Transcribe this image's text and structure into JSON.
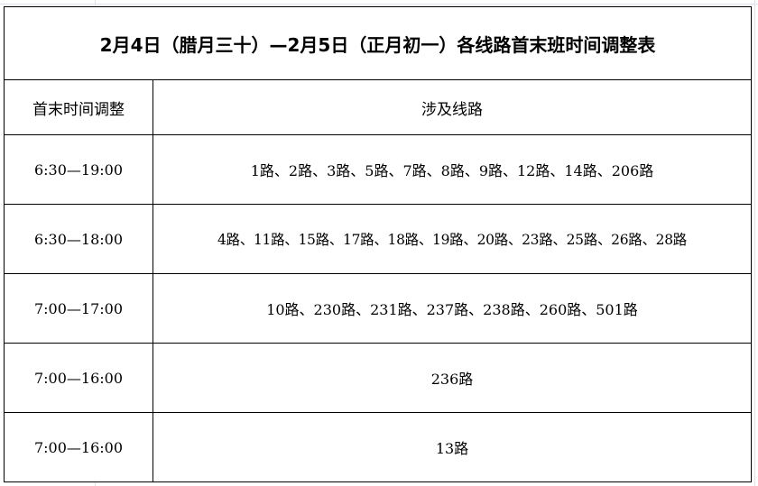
{
  "title": "2月4日（腊月三十）—2月5日（正月初一）各线路首末班时间调整表",
  "headers": {
    "time": "首末时间调整",
    "routes": "涉及线路"
  },
  "rows": [
    {
      "time": "6:30—19:00",
      "routes": "1路、2路、3路、5路、7路、8路、9路、12路、14路、206路"
    },
    {
      "time": "6:30—18:00",
      "routes": "4路、11路、15路、17路、18路、19路、20路、23路、25路、26路、28路"
    },
    {
      "time": "7:00—17:00",
      "routes": "10路、230路、231路、237路、238路、260路、501路"
    },
    {
      "time": "7:00—16:00",
      "routes": "236路"
    },
    {
      "time": "7:00—16:00",
      "routes": "13路"
    }
  ]
}
